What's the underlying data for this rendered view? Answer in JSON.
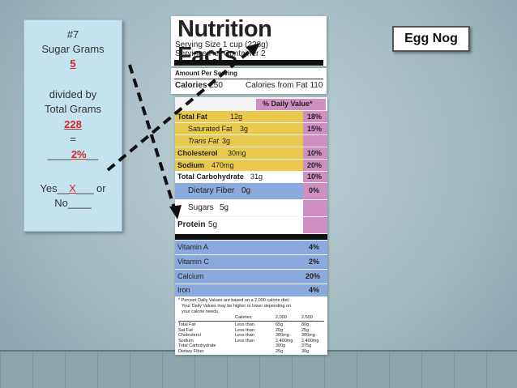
{
  "calculation_panel": {
    "number": "#7",
    "sugar_label": "Sugar Grams",
    "sugar_value": "5",
    "divided_by": "divided by",
    "total_label": "Total Grams",
    "total_value": "228",
    "equals": "=",
    "result_prefix": "____",
    "result_value": "2%",
    "result_suffix": "__",
    "yes_label": "Yes",
    "yes_blank_pre": "__",
    "yes_mark": "X",
    "yes_blank_post": "___ or",
    "no_label": "No____"
  },
  "product_tag": "Egg Nog",
  "nutrition_label": {
    "title": "Nutrition Facts",
    "serving_size": "Serving Size 1 cup (228g)",
    "servings_per_container": "Servings Per Container  2",
    "amount_per_serving": "Amount Per Serving",
    "calories": "Calories",
    "calories_value": "250",
    "calories_from_fat": "Calories from Fat 110",
    "daily_value_header": "% Daily Value*",
    "rows": [
      {
        "name": "Total Fat",
        "amount": "12g",
        "dv": "18%"
      },
      {
        "name": "Saturated Fat",
        "amount": "3g",
        "dv": "15%"
      },
      {
        "name": "Trans Fat",
        "amount": "3g",
        "dv": ""
      },
      {
        "name": "Cholesterol",
        "amount": "30mg",
        "dv": "10%"
      },
      {
        "name": "Sodium",
        "amount": "470mg",
        "dv": "20%"
      },
      {
        "name": "Total Carbohydrate",
        "amount": "31g",
        "dv": "10%"
      },
      {
        "name": "Dietary Fiber",
        "amount": "0g",
        "dv": "0%"
      },
      {
        "name": "Sugars",
        "amount": "5g",
        "dv": ""
      },
      {
        "name": "Protein",
        "amount": "5g",
        "dv": ""
      }
    ],
    "vitamins": [
      {
        "name": "Vitamin A",
        "dv": "4%"
      },
      {
        "name": "Vitamin C",
        "dv": "2%"
      },
      {
        "name": "Calcium",
        "dv": "20%"
      },
      {
        "name": "Iron",
        "dv": "4%"
      }
    ],
    "footnote_1": "* Percent Daily Values are based on a 2,000 calorie diet.",
    "footnote_2": "Your Daily Values may be higher or lower depending on",
    "footnote_3": "your calorie needs.",
    "table_header": {
      "calories": "Calories:",
      "c1": "2,000",
      "c2": "2,500"
    },
    "table_rows": [
      {
        "name": "Total Fat",
        "qual": "Less than",
        "c1": "65g",
        "c2": "80g"
      },
      {
        "name": "  Sat Fat",
        "qual": "Less than",
        "c1": "20g",
        "c2": "25g"
      },
      {
        "name": "Cholesterol",
        "qual": "Less than",
        "c1": "300mg",
        "c2": "300mg"
      },
      {
        "name": "Sodium",
        "qual": "Less than",
        "c1": "2,400mg",
        "c2": "2,400mg"
      },
      {
        "name": "Total Carbohydrate",
        "qual": "",
        "c1": "300g",
        "c2": "375g"
      },
      {
        "name": "  Dietary Fiber",
        "qual": "",
        "c1": "25g",
        "c2": "30g"
      }
    ]
  },
  "colors": {
    "yellow": "#e8c94e",
    "pink": "#cf8fc0",
    "blue": "#8aa9dc",
    "panel": "#c3e3ee",
    "red": "#d42a2a"
  }
}
